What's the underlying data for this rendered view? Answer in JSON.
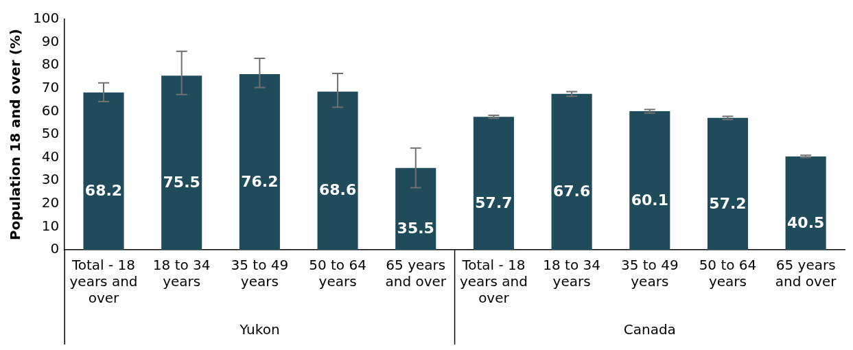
{
  "chart_data": {
    "type": "bar",
    "ylabel": "Population 18 and over (%)",
    "categories": [
      "Total - 18 years and over",
      "18 to 34 years",
      "35 to 49 years",
      "50 to 64 years",
      "65 years and over",
      "Total - 18 years and over",
      "18 to 34 years",
      "35 to 49 years",
      "50 to 64 years",
      "65 years and over"
    ],
    "values": [
      68.2,
      75.5,
      76.2,
      68.6,
      35.5,
      57.7,
      67.6,
      60.1,
      57.2,
      40.5
    ],
    "errors": [
      [
        64.3,
        72.4
      ],
      [
        67.3,
        86.1
      ],
      [
        70.4,
        83.0
      ],
      [
        61.8,
        76.5
      ],
      [
        26.9,
        44.1
      ],
      [
        57.1,
        58.3
      ],
      [
        66.6,
        68.6
      ],
      [
        59.3,
        60.9
      ],
      [
        56.5,
        57.9
      ],
      [
        40.0,
        41.0
      ]
    ],
    "color": "#1f4b5b",
    "data_labels": true,
    "annotations": [
      "Yukon",
      "Canada"
    ],
    "ylim": [
      0,
      100
    ],
    "yticks": [
      0,
      10,
      20,
      30,
      40,
      50,
      60,
      70,
      80,
      90,
      100
    ],
    "grid": false,
    "legend": false
  }
}
